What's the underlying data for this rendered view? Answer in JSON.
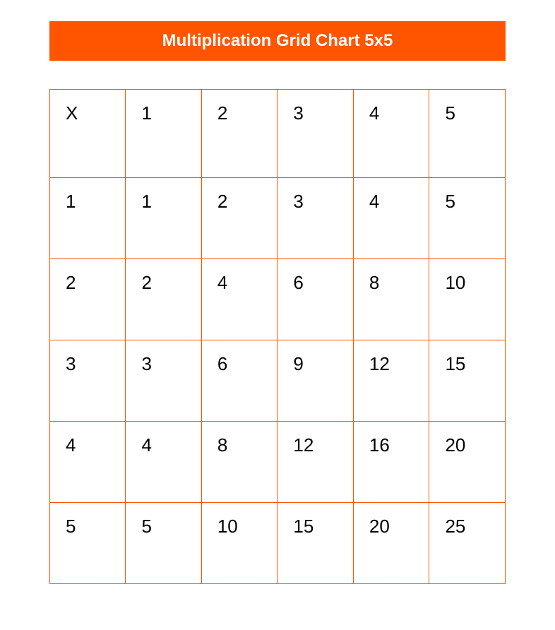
{
  "title": "Multiplication Grid Chart 5x5",
  "table": {
    "type": "table",
    "border_color": "#ff5500",
    "background_color": "#ffffff",
    "cell_text_color": "#000000",
    "cell_font_size": 26,
    "title_bar": {
      "background_color": "#ff5500",
      "text_color": "#ffffff",
      "font_size": 24,
      "font_weight": "bold"
    },
    "columns": [
      "X",
      "1",
      "2",
      "3",
      "4",
      "5"
    ],
    "rows": [
      [
        "X",
        "1",
        "2",
        "3",
        "4",
        "5"
      ],
      [
        "1",
        "1",
        "2",
        "3",
        "4",
        "5"
      ],
      [
        "2",
        "2",
        "4",
        "6",
        "8",
        "10"
      ],
      [
        "3",
        "3",
        "6",
        "9",
        "12",
        "15"
      ],
      [
        "4",
        "4",
        "8",
        "12",
        "16",
        "20"
      ],
      [
        "5",
        "5",
        "10",
        "15",
        "20",
        "25"
      ]
    ]
  }
}
